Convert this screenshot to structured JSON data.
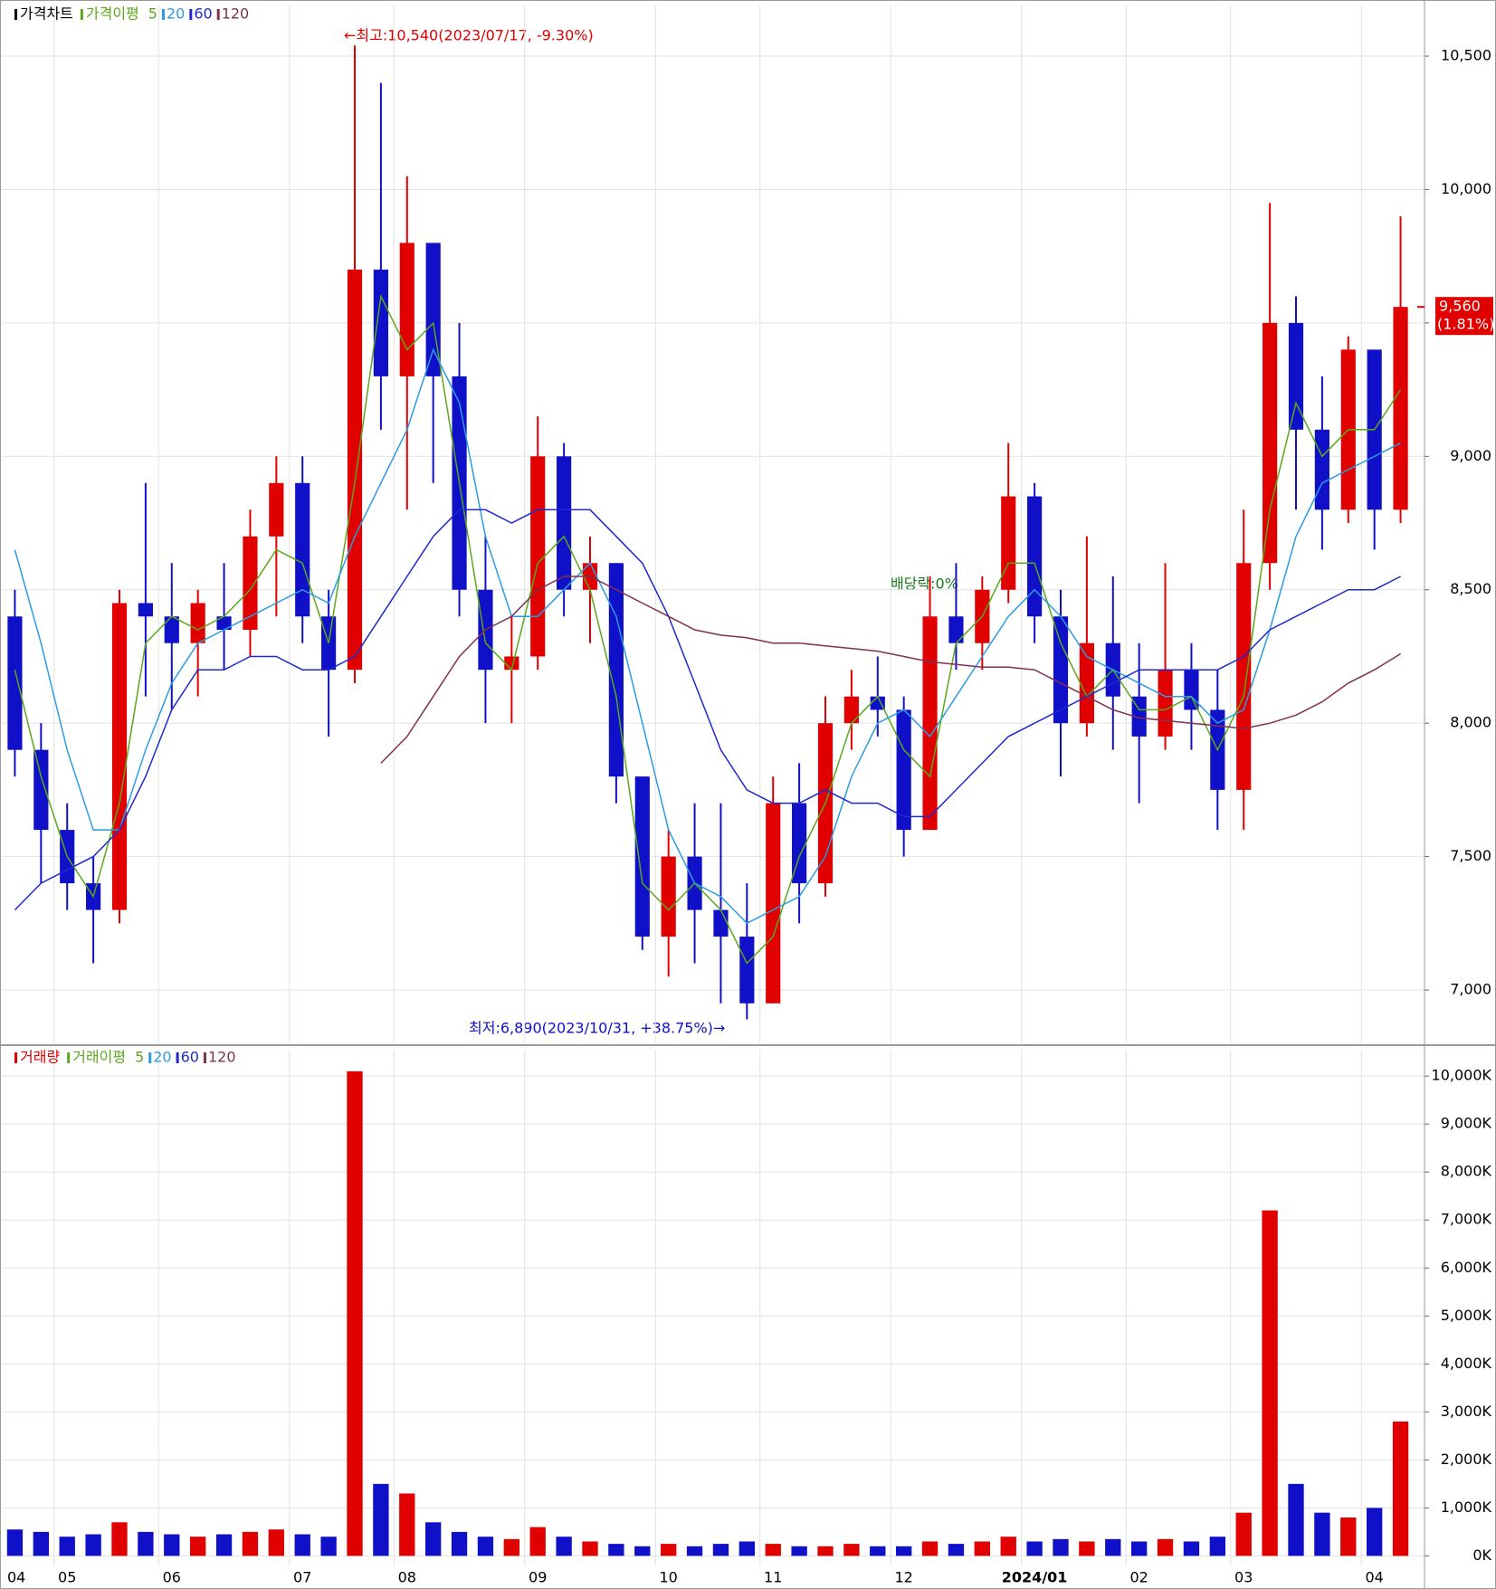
{
  "chart_data": [
    {
      "type": "candlestick",
      "legend_title": "가격차트",
      "ma_title": "가격이평",
      "up_color": "#e00000",
      "down_color": "#1010c8",
      "open": [
        8400,
        7900,
        7600,
        7400,
        7300,
        8450,
        8400,
        8300,
        8400,
        8350,
        8700,
        8900,
        8400,
        8200,
        9700,
        9300,
        9800,
        9300,
        8500,
        8200,
        8250,
        9000,
        8500,
        8600,
        7800,
        7200,
        7500,
        7300,
        7200,
        6950,
        7700,
        7400,
        8000,
        8100,
        8050,
        7600,
        8400,
        8300,
        8500,
        8850,
        8400,
        8000,
        8300,
        8100,
        7950,
        8200,
        8050,
        7750,
        8600,
        9500,
        9100,
        8800,
        9400,
        8800
      ],
      "high": [
        8500,
        8000,
        7700,
        7500,
        8500,
        8900,
        8600,
        8500,
        8600,
        8800,
        9000,
        9000,
        8500,
        10540,
        10400,
        10050,
        9800,
        9500,
        8700,
        8400,
        9150,
        9050,
        8700,
        8600,
        7800,
        7600,
        7700,
        7700,
        7400,
        7800,
        7850,
        8100,
        8200,
        8250,
        8100,
        8550,
        8600,
        8550,
        9050,
        8900,
        8500,
        8700,
        8550,
        8300,
        8600,
        8300,
        8200,
        8800,
        9950,
        9600,
        9300,
        9450,
        9400,
        9900
      ],
      "low": [
        7800,
        7400,
        7300,
        7100,
        7250,
        8100,
        8050,
        8100,
        8200,
        8250,
        8400,
        8300,
        7950,
        8150,
        9100,
        8800,
        8900,
        8400,
        8000,
        8000,
        8200,
        8400,
        8300,
        7700,
        7150,
        7050,
        7100,
        6950,
        6890,
        6950,
        7250,
        7350,
        7900,
        7950,
        7500,
        7600,
        8200,
        8200,
        8450,
        8300,
        7800,
        7950,
        7900,
        7700,
        7900,
        7900,
        7600,
        7600,
        8500,
        8800,
        8650,
        8750,
        8650,
        8750
      ],
      "close": [
        7900,
        7600,
        7400,
        7300,
        8450,
        8400,
        8300,
        8450,
        8350,
        8700,
        8900,
        8400,
        8200,
        9700,
        9300,
        9800,
        9300,
        8500,
        8200,
        8250,
        9000,
        8500,
        8600,
        7800,
        7200,
        7500,
        7300,
        7200,
        6950,
        7700,
        7400,
        8000,
        8100,
        8050,
        7600,
        8400,
        8300,
        8500,
        8850,
        8400,
        8000,
        8300,
        8100,
        7950,
        8200,
        8050,
        7750,
        8600,
        9500,
        9100,
        8800,
        9400,
        8800,
        9560
      ],
      "series": [
        {
          "name": "5",
          "color": "#5aa81c",
          "values": [
            8200,
            7800,
            7500,
            7350,
            7700,
            8300,
            8400,
            8350,
            8400,
            8500,
            8650,
            8600,
            8300,
            8900,
            9600,
            9400,
            9500,
            8900,
            8300,
            8200,
            8600,
            8700,
            8500,
            8100,
            7400,
            7300,
            7400,
            7300,
            7100,
            7200,
            7500,
            7700,
            8000,
            8100,
            7900,
            7800,
            8300,
            8400,
            8600,
            8600,
            8300,
            8100,
            8200,
            8050,
            8050,
            8100,
            7900,
            8100,
            8800,
            9200,
            9000,
            9100,
            9100,
            9250
          ]
        },
        {
          "name": "20",
          "color": "#2c9be0",
          "values": [
            8650,
            8300,
            7900,
            7600,
            7600,
            7900,
            8150,
            8300,
            8350,
            8400,
            8450,
            8500,
            8450,
            8700,
            8900,
            9100,
            9400,
            9200,
            8700,
            8400,
            8400,
            8500,
            8600,
            8400,
            8000,
            7600,
            7400,
            7350,
            7250,
            7300,
            7350,
            7500,
            7800,
            8000,
            8050,
            7950,
            8100,
            8250,
            8400,
            8500,
            8400,
            8250,
            8200,
            8150,
            8100,
            8100,
            8000,
            8050,
            8350,
            8700,
            8900,
            8950,
            9000,
            9050
          ]
        },
        {
          "name": "60",
          "color": "#1c2ad0",
          "values": [
            7300,
            7400,
            7450,
            7500,
            7600,
            7800,
            8050,
            8200,
            8200,
            8250,
            8250,
            8200,
            8200,
            8250,
            8400,
            8550,
            8700,
            8800,
            8800,
            8750,
            8800,
            8800,
            8800,
            8700,
            8600,
            8400,
            8150,
            7900,
            7750,
            7700,
            7700,
            7750,
            7700,
            7700,
            7650,
            7650,
            7750,
            7850,
            7950,
            8000,
            8050,
            8100,
            8150,
            8200,
            8200,
            8200,
            8200,
            8250,
            8350,
            8400,
            8450,
            8500,
            8500,
            8550
          ]
        },
        {
          "name": "120",
          "color": "#803050",
          "values": [
            null,
            null,
            null,
            null,
            null,
            null,
            null,
            null,
            null,
            null,
            null,
            null,
            null,
            null,
            7850,
            7950,
            8100,
            8250,
            8350,
            8400,
            8500,
            8550,
            8550,
            8500,
            8450,
            8400,
            8350,
            8330,
            8320,
            8300,
            8300,
            8290,
            8280,
            8270,
            8250,
            8230,
            8220,
            8210,
            8210,
            8200,
            8150,
            8100,
            8050,
            8020,
            8010,
            8000,
            7990,
            7980,
            8000,
            8030,
            8080,
            8150,
            8200,
            8260
          ]
        }
      ],
      "ylim": [
        6800,
        10690
      ],
      "yticks": [
        {
          "value": 7000,
          "label": "7,000"
        },
        {
          "value": 7500,
          "label": "7,500"
        },
        {
          "value": 8000,
          "label": "8,000"
        },
        {
          "value": 8500,
          "label": "8,500"
        },
        {
          "value": 9000,
          "label": "9,000"
        },
        {
          "value": 9500,
          "label": ""
        },
        {
          "value": 10000,
          "label": "10,000"
        },
        {
          "value": 10500,
          "label": "10,500"
        }
      ],
      "high_note": "←최고:10,540(2023/07/17, -9.30%)",
      "low_note": "최저:6,890(2023/10/31, +38.75%)→",
      "dividend_note": "배당락:0%",
      "price_tag": {
        "value": 9560,
        "label": "9,560",
        "change": "(1.81%)"
      }
    },
    {
      "type": "bar",
      "legend_title": "거래량",
      "ma_title": "거래이평",
      "ma_names": [
        {
          "name": "5",
          "color": "#5aa81c"
        },
        {
          "name": "20",
          "color": "#2c9be0"
        },
        {
          "name": "60",
          "color": "#1c2ad0"
        },
        {
          "name": "120",
          "color": "#803050"
        }
      ],
      "categories": [
        "04",
        null,
        "05",
        null,
        null,
        null,
        "06",
        null,
        null,
        null,
        null,
        "07",
        null,
        null,
        null,
        "08",
        null,
        null,
        null,
        null,
        "09",
        null,
        null,
        null,
        null,
        "10",
        null,
        null,
        null,
        "11",
        null,
        null,
        null,
        null,
        "12",
        null,
        null,
        null,
        null,
        "2024/01",
        null,
        null,
        null,
        "02",
        null,
        null,
        null,
        "03",
        null,
        null,
        null,
        null,
        "04",
        null
      ],
      "values": [
        550,
        500,
        400,
        450,
        700,
        500,
        450,
        400,
        450,
        500,
        550,
        450,
        400,
        10100,
        1500,
        1300,
        700,
        500,
        400,
        350,
        600,
        400,
        300,
        250,
        200,
        250,
        200,
        250,
        300,
        250,
        200,
        200,
        250,
        200,
        200,
        300,
        250,
        300,
        400,
        300,
        350,
        300,
        350,
        300,
        350,
        300,
        400,
        900,
        7200,
        1500,
        900,
        800,
        1000,
        2800
      ],
      "ylim": [
        -200,
        10550
      ],
      "yticks": [
        {
          "value": 0,
          "label": "0K"
        },
        {
          "value": 1000,
          "label": "1,000K"
        },
        {
          "value": 2000,
          "label": "2,000K"
        },
        {
          "value": 3000,
          "label": "3,000K"
        },
        {
          "value": 4000,
          "label": "4,000K"
        },
        {
          "value": 5000,
          "label": "5,000K"
        },
        {
          "value": 6000,
          "label": "6,000K"
        },
        {
          "value": 7000,
          "label": "7,000K"
        },
        {
          "value": 8000,
          "label": "8,000K"
        },
        {
          "value": 9000,
          "label": "9,000K"
        },
        {
          "value": 10000,
          "label": "10,000K"
        }
      ]
    }
  ]
}
